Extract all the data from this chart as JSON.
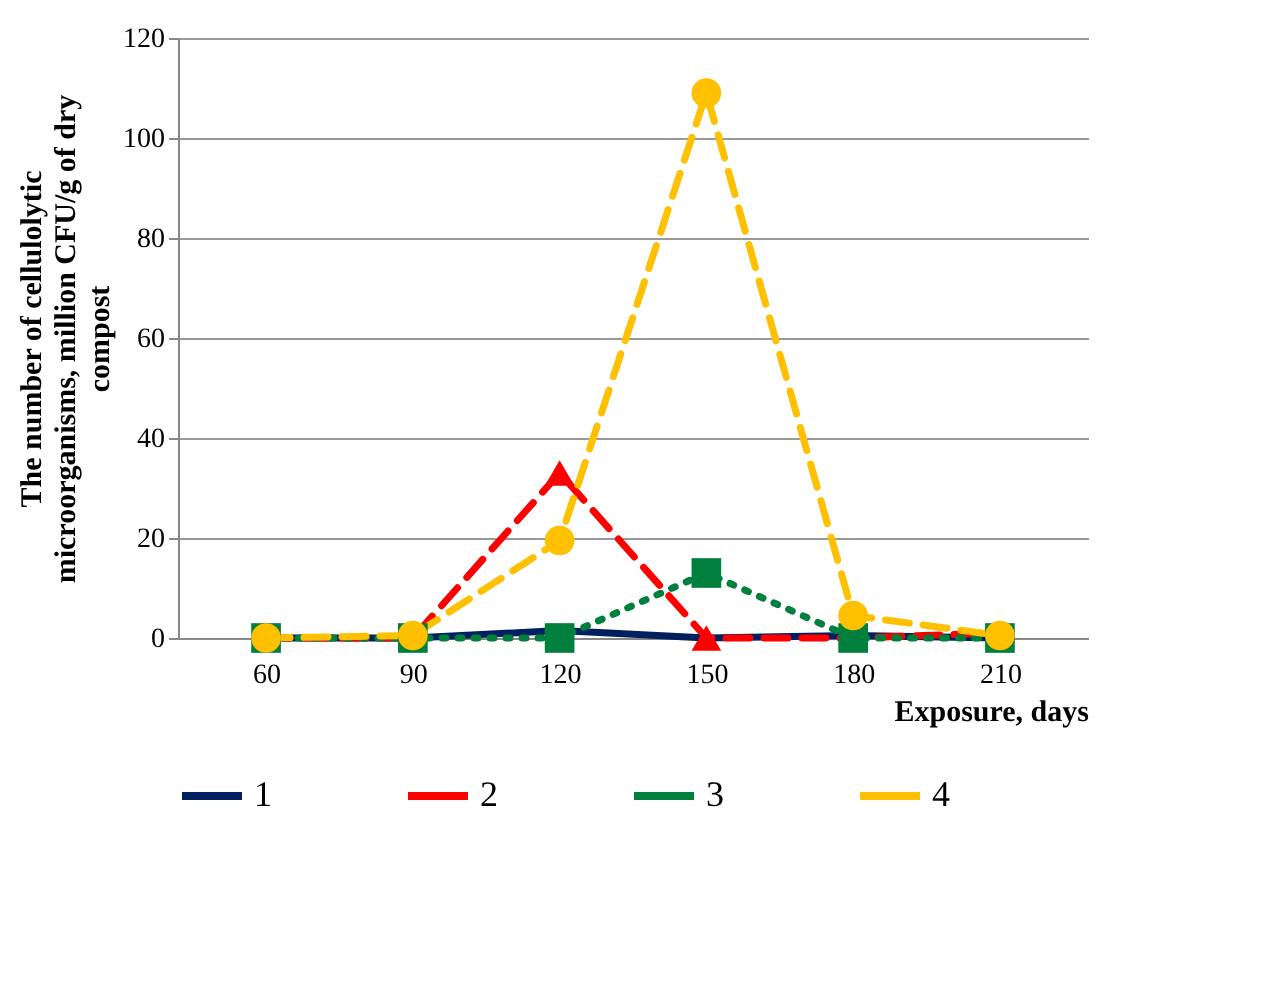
{
  "chart_data": {
    "type": "line",
    "xlabel": "Exposure, days",
    "ylabel": "The number of cellulolytic microorganisms, million CFU/g of dry compost",
    "categories": [
      "60",
      "90",
      "120",
      "150",
      "180",
      "210"
    ],
    "series": [
      {
        "name": "1",
        "color": "#002060",
        "values": [
          0,
          0,
          1.5,
          0,
          0.5,
          0
        ],
        "marker": "none",
        "line_style": "solid"
      },
      {
        "name": "2",
        "color": "#ff0000",
        "values": [
          0,
          0,
          33,
          0,
          0,
          1
        ],
        "marker": "triangle",
        "line_style": "dashed"
      },
      {
        "name": "3",
        "color": "#00803c",
        "values": [
          0,
          0,
          0,
          13,
          0,
          0
        ],
        "marker": "square",
        "line_style": "dotted"
      },
      {
        "name": "4",
        "color": "#ffc000",
        "values": [
          0,
          0.5,
          19.5,
          109,
          4.5,
          0.5
        ],
        "marker": "circle",
        "line_style": "dashed"
      }
    ],
    "ylim": [
      0,
      120
    ],
    "yticks": [
      0,
      20,
      40,
      60,
      80,
      100,
      120
    ],
    "grid": "y",
    "legend": "bottom"
  }
}
